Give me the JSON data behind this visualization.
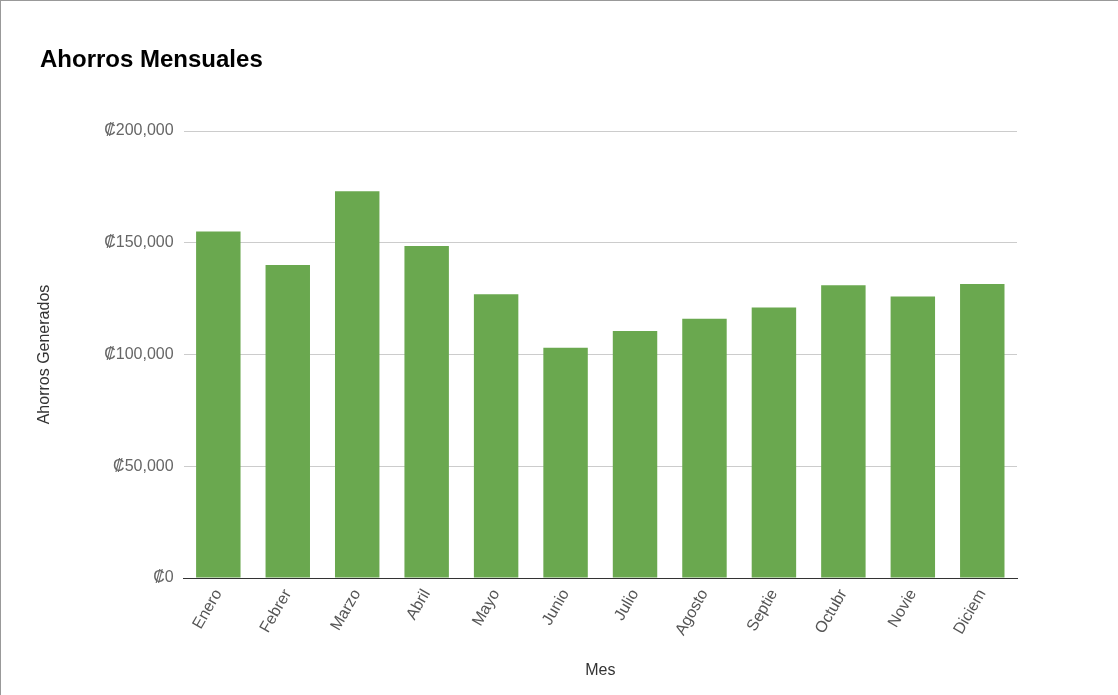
{
  "chart_data": {
    "type": "bar",
    "title": "Ahorros Mensuales",
    "xlabel": "Mes",
    "ylabel": "Ahorros Generados",
    "categories": [
      "Enero",
      "Febrer",
      "Marzo",
      "Abril",
      "Mayo",
      "Junio",
      "Julio",
      "Agosto",
      "Septie",
      "Octubr",
      "Novie",
      "Diciem"
    ],
    "values": [
      155000,
      140000,
      173000,
      148500,
      127000,
      103000,
      110500,
      116000,
      121000,
      131000,
      126000,
      131500
    ],
    "color": "#6aa84f",
    "ylim": [
      0,
      200000
    ],
    "yticks": [
      {
        "value": 0,
        "label": "₡0"
      },
      {
        "value": 50000,
        "label": "₡50,000"
      },
      {
        "value": 100000,
        "label": "₡100,000"
      },
      {
        "value": 150000,
        "label": "₡150,000"
      },
      {
        "value": 200000,
        "label": "₡200,000"
      }
    ],
    "grid": "y",
    "legend": false
  }
}
